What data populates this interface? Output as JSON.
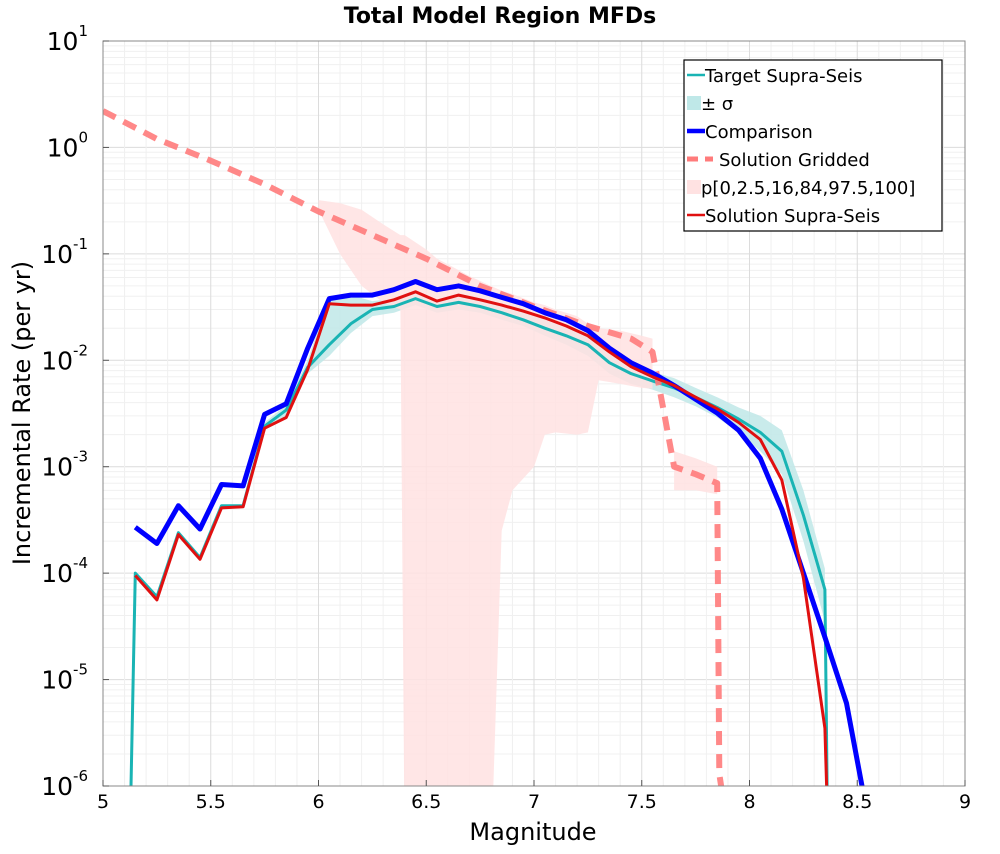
{
  "chart_data": {
    "type": "line",
    "title": "Total Model Region MFDs",
    "xlabel": "Magnitude",
    "ylabel": "Incremental Rate (per yr)",
    "xlim": [
      5,
      9
    ],
    "ylim": [
      1e-06,
      10
    ],
    "yscale": "log",
    "grid": true,
    "legend_position": "top-right",
    "x_ticks": [
      "5",
      "5.5",
      "6",
      "6.5",
      "7",
      "7.5",
      "8",
      "8.5",
      "9"
    ],
    "y_ticks": [
      {
        "base": "10",
        "exp": "1",
        "value": 10
      },
      {
        "base": "10",
        "exp": "0",
        "value": 1
      },
      {
        "base": "10",
        "exp": "-1",
        "value": 0.1
      },
      {
        "base": "10",
        "exp": "-2",
        "value": 0.01
      },
      {
        "base": "10",
        "exp": "-3",
        "value": 0.001
      },
      {
        "base": "10",
        "exp": "-4",
        "value": 0.0001
      },
      {
        "base": "10",
        "exp": "-5",
        "value": 1e-05
      },
      {
        "base": "10",
        "exp": "-6",
        "value": 1e-06
      }
    ],
    "legend": [
      {
        "label": "Target Supra-Seis",
        "kind": "line",
        "color": "#19b4b4"
      },
      {
        "label": "± σ",
        "kind": "band",
        "color": "#bfe8e8"
      },
      {
        "label": "Comparison",
        "kind": "line-thick",
        "color": "#0000ff"
      },
      {
        "label": "Solution Gridded",
        "kind": "dashed",
        "color": "#ff7b7b"
      },
      {
        "label": "p[0,2.5,16,84,97.5,100]",
        "kind": "band",
        "color": "#ffe2e2"
      },
      {
        "label": "Solution Supra-Seis",
        "kind": "line",
        "color": "#e01010"
      }
    ],
    "series": [
      {
        "name": "Target Supra-Seis",
        "color": "#19b4b4",
        "x": [
          5.13,
          5.15,
          5.25,
          5.35,
          5.45,
          5.55,
          5.65,
          5.75,
          5.85,
          5.95,
          6.05,
          6.15,
          6.25,
          6.35,
          6.45,
          6.55,
          6.65,
          6.75,
          6.85,
          6.95,
          7.05,
          7.15,
          7.25,
          7.35,
          7.45,
          7.55,
          7.65,
          7.75,
          7.85,
          7.95,
          8.05,
          8.15,
          8.25,
          8.35,
          8.36
        ],
        "y": [
          1e-06,
          0.0001,
          6e-05,
          0.00024,
          0.00014,
          0.00043,
          0.00043,
          0.0024,
          0.0034,
          0.0086,
          0.014,
          0.022,
          0.03,
          0.032,
          0.038,
          0.032,
          0.035,
          0.032,
          0.028,
          0.024,
          0.02,
          0.017,
          0.014,
          0.0095,
          0.0075,
          0.0064,
          0.0055,
          0.0045,
          0.0036,
          0.0028,
          0.0021,
          0.0014,
          0.00035,
          7e-05,
          1e-06
        ]
      },
      {
        "name": "Comparison",
        "color": "#0000ff",
        "x": [
          5.15,
          5.25,
          5.35,
          5.45,
          5.55,
          5.65,
          5.75,
          5.85,
          5.95,
          6.05,
          6.15,
          6.25,
          6.35,
          6.45,
          6.55,
          6.65,
          6.75,
          6.85,
          6.95,
          7.05,
          7.15,
          7.25,
          7.35,
          7.45,
          7.55,
          7.65,
          7.75,
          7.85,
          7.95,
          8.05,
          8.15,
          8.25,
          8.35,
          8.45,
          8.55
        ],
        "y": [
          0.00027,
          0.00019,
          0.00043,
          0.00026,
          0.00068,
          0.00066,
          0.0031,
          0.0039,
          0.013,
          0.038,
          0.041,
          0.041,
          0.046,
          0.055,
          0.046,
          0.05,
          0.045,
          0.039,
          0.034,
          0.028,
          0.024,
          0.019,
          0.013,
          0.0095,
          0.0076,
          0.0058,
          0.0043,
          0.0032,
          0.0022,
          0.0012,
          0.0004,
          0.0001,
          2.5e-05,
          6e-06,
          5e-07
        ]
      },
      {
        "name": "Solution Gridded",
        "color": "#ff7b7b",
        "x": [
          5.0,
          5.25,
          5.5,
          5.75,
          6.0,
          6.25,
          6.5,
          6.75,
          7.0,
          7.25,
          7.45,
          7.55,
          7.6,
          7.65,
          7.75,
          7.85,
          7.86,
          7.88
        ],
        "y": [
          2.2,
          1.2,
          0.75,
          0.45,
          0.25,
          0.15,
          0.09,
          0.05,
          0.032,
          0.021,
          0.016,
          0.012,
          0.0035,
          0.001,
          0.00085,
          0.0007,
          1.3e-06,
          7e-07
        ]
      },
      {
        "name": "Solution Supra-Seis",
        "color": "#e01010",
        "x": [
          5.15,
          5.25,
          5.35,
          5.45,
          5.55,
          5.65,
          5.75,
          5.85,
          5.95,
          6.05,
          6.15,
          6.25,
          6.35,
          6.45,
          6.55,
          6.65,
          6.75,
          6.85,
          6.95,
          7.05,
          7.15,
          7.25,
          7.35,
          7.45,
          7.55,
          7.65,
          7.75,
          7.85,
          7.95,
          8.05,
          8.15,
          8.25,
          8.35,
          8.36
        ],
        "y": [
          9.5e-05,
          5.6e-05,
          0.00023,
          0.000135,
          0.00041,
          0.00042,
          0.0023,
          0.0029,
          0.0082,
          0.034,
          0.033,
          0.033,
          0.037,
          0.044,
          0.036,
          0.041,
          0.037,
          0.033,
          0.029,
          0.025,
          0.021,
          0.017,
          0.012,
          0.0087,
          0.007,
          0.0058,
          0.0045,
          0.0035,
          0.0026,
          0.0018,
          0.00075,
          9e-05,
          3.5e-06,
          7e-07
        ]
      }
    ],
    "bands": [
      {
        "name": "± σ",
        "color": "#bfe8e8",
        "x": [
          5.75,
          5.85,
          5.95,
          6.05,
          6.15,
          6.25,
          6.35,
          6.45,
          6.55,
          6.65,
          6.75,
          6.85,
          6.95,
          7.05,
          7.15,
          7.25,
          7.35,
          7.45,
          7.55,
          7.65,
          7.75,
          7.85,
          7.95,
          8.05,
          8.15,
          8.25,
          8.35
        ],
        "low": [
          0.0022,
          0.003,
          0.0075,
          0.011,
          0.018,
          0.026,
          0.028,
          0.033,
          0.028,
          0.03,
          0.028,
          0.024,
          0.021,
          0.017,
          0.014,
          0.011,
          0.0075,
          0.006,
          0.0053,
          0.0045,
          0.0037,
          0.0029,
          0.0021,
          0.0014,
          0.00085,
          0.0002,
          3.5e-05
        ],
        "high": [
          0.0026,
          0.0038,
          0.01,
          0.04,
          0.041,
          0.036,
          0.038,
          0.044,
          0.037,
          0.041,
          0.037,
          0.033,
          0.028,
          0.024,
          0.02,
          0.017,
          0.012,
          0.0095,
          0.0078,
          0.0068,
          0.0055,
          0.0045,
          0.0036,
          0.003,
          0.0022,
          0.0006,
          0.00011
        ]
      },
      {
        "name": "p[0,2.5,16,84,97.5,100]",
        "color": "#ffe2e2",
        "x": [
          6.0,
          6.1,
          6.2,
          6.3,
          6.38,
          6.4,
          6.5,
          6.55,
          6.6,
          6.7,
          6.8,
          6.85,
          6.9,
          7.0,
          7.05,
          7.1,
          7.2,
          7.25,
          7.3,
          7.4,
          7.5,
          7.55
        ],
        "low": [
          0.26,
          0.1,
          0.05,
          0.035,
          0.03,
          2e-07,
          2e-07,
          2e-07,
          2e-07,
          2e-07,
          2e-07,
          0.00025,
          0.0006,
          0.001,
          0.002,
          0.0021,
          0.002,
          0.0021,
          0.0065,
          0.006,
          0.0055,
          0.0054
        ],
        "high": [
          0.32,
          0.3,
          0.26,
          0.19,
          0.15,
          0.15,
          0.11,
          0.09,
          0.08,
          0.062,
          0.05,
          0.045,
          0.042,
          0.035,
          0.033,
          0.03,
          0.026,
          0.022,
          0.02,
          0.019,
          0.017,
          0.016
        ]
      },
      {
        "name": "p[0,2.5,16,84,97.5,100] tail",
        "color": "#ffe2e2",
        "x": [
          7.65,
          7.75,
          7.85
        ],
        "low": [
          0.0006,
          0.0006,
          0.00055
        ],
        "high": [
          0.0014,
          0.0012,
          0.001
        ]
      }
    ]
  }
}
